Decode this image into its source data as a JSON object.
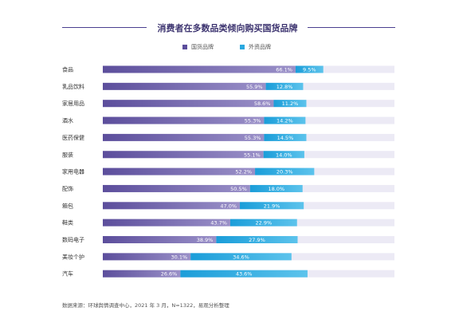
{
  "colors": {
    "domestic": "#5c4e9c",
    "foreign": "#2aa8df",
    "track": "#eceaf5",
    "title_line": "#4a3f8f"
  },
  "chart_data": {
    "type": "bar",
    "orientation": "horizontal",
    "stacked": true,
    "title": "消费者在多数品类倾向购买国货品牌",
    "xlim": [
      0,
      100
    ],
    "legend_placement": "top-center",
    "grid": false,
    "categories": [
      "食品",
      "乳品饮料",
      "家居用品",
      "酒水",
      "医药保健",
      "服装",
      "家用电器",
      "配饰",
      "箱包",
      "鞋类",
      "数码电子",
      "美妆个护",
      "汽车"
    ],
    "series": [
      {
        "name": "国货品牌",
        "values": [
          66.1,
          55.9,
          58.6,
          55.3,
          55.3,
          55.1,
          52.2,
          50.5,
          47.0,
          43.7,
          38.9,
          30.1,
          26.6
        ],
        "labels": [
          "66.1%",
          "55.9%",
          "58.6%",
          "55.3%",
          "55.3%",
          "55.1%",
          "52.2%",
          "50.5%",
          "47.0%",
          "43.7%",
          "38.9%",
          "30.1%",
          "26.6%"
        ]
      },
      {
        "name": "外资品牌",
        "values": [
          9.5,
          12.8,
          11.2,
          14.2,
          14.5,
          14.0,
          20.3,
          18.0,
          21.9,
          22.9,
          27.9,
          34.6,
          43.6
        ],
        "labels": [
          "9.5%",
          "12.8%",
          "11.2%",
          "14.2%",
          "14.5%",
          "14.0%",
          "20.3%",
          "18.0%",
          "21.9%",
          "22.9%",
          "27.9%",
          "34.6%",
          "43.6%"
        ]
      }
    ]
  },
  "source": "数据来源：环球舆情调查中心，2021 年 3 月，N=1322，易观分析整理"
}
